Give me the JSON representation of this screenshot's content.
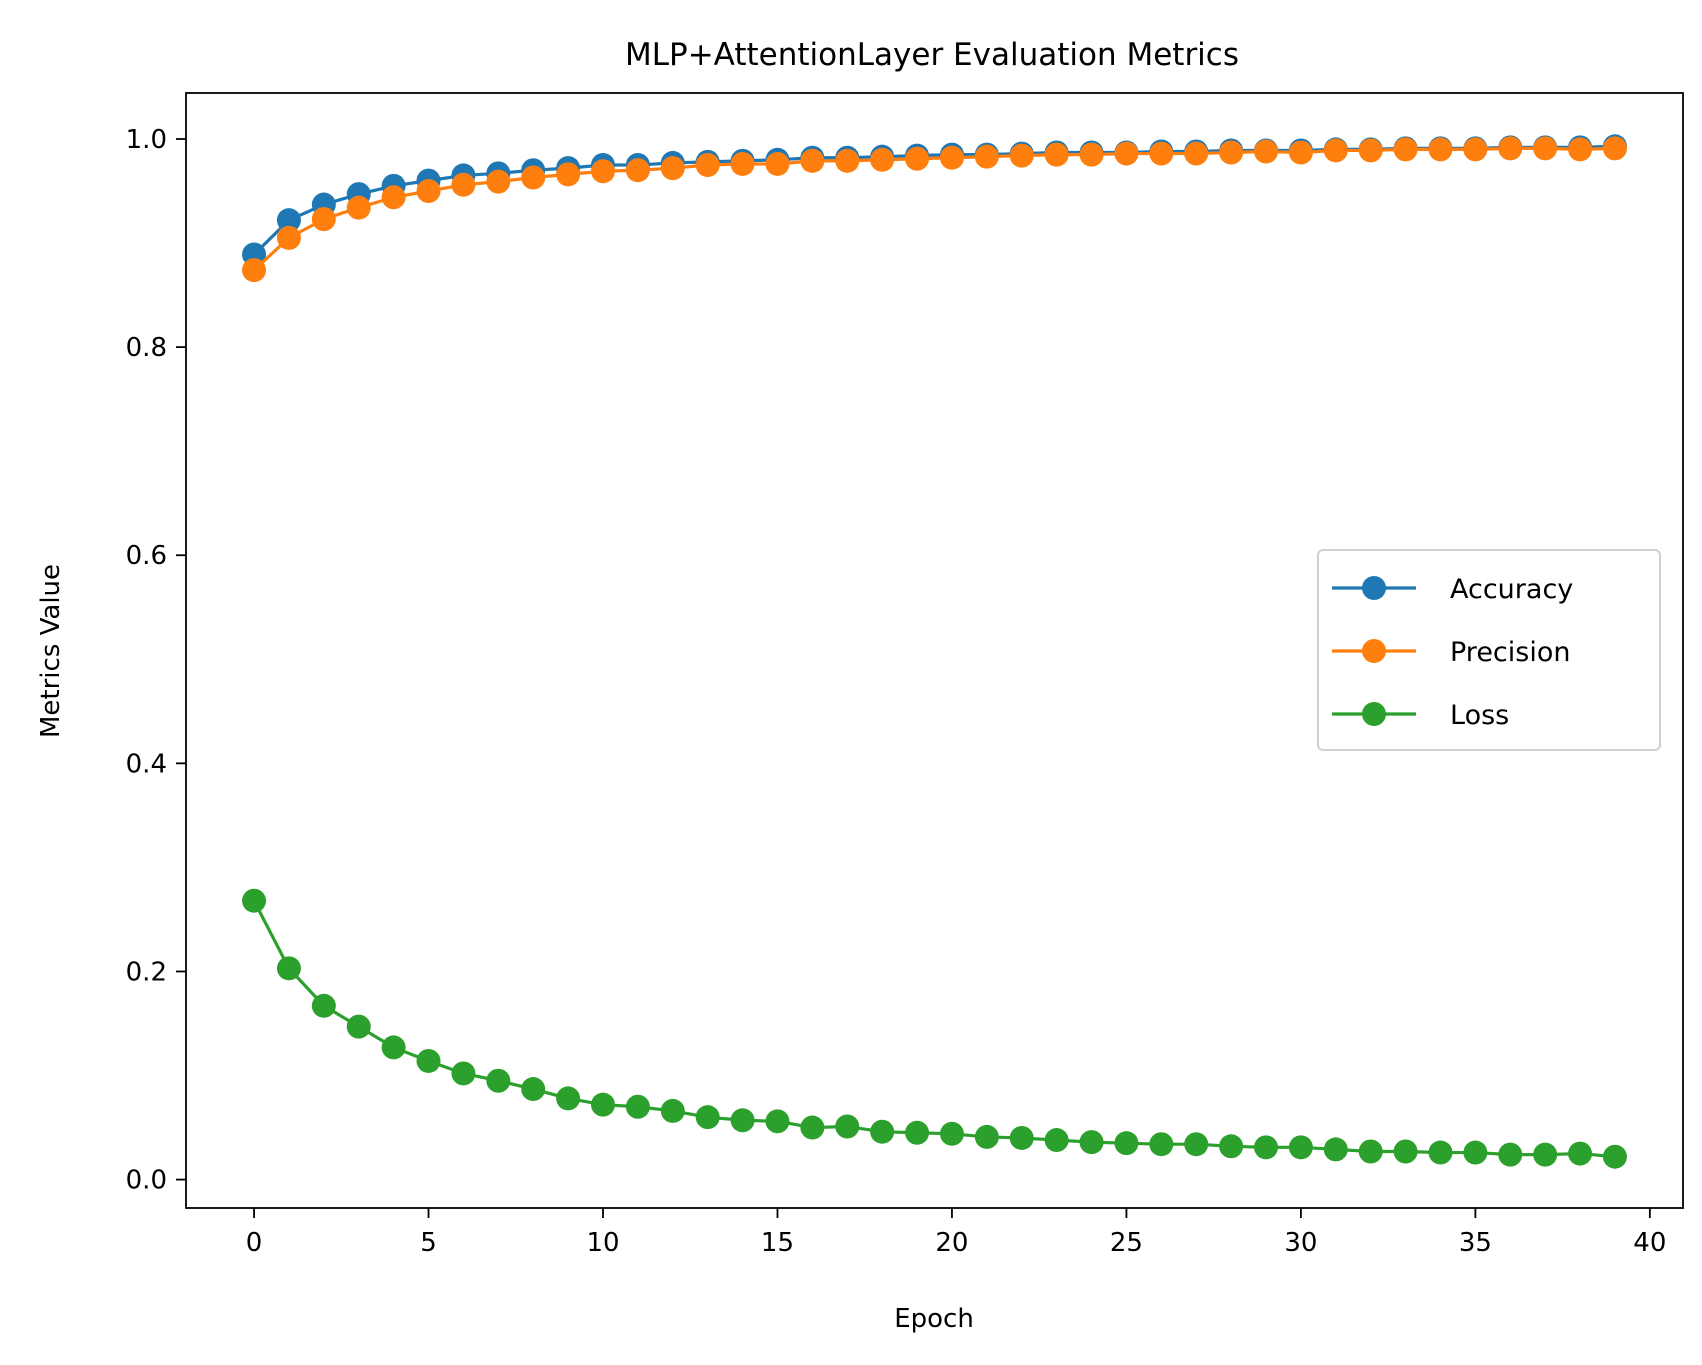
{
  "chart_data": {
    "type": "line",
    "title": "MLP+AttentionLayer Evaluation Metrics",
    "xlabel": "Epoch",
    "ylabel": "Metrics Value",
    "xlim": [
      -1.95,
      40.95
    ],
    "ylim": [
      -0.0273,
      1.0442
    ],
    "xticks": [
      0,
      5,
      10,
      15,
      20,
      25,
      30,
      35,
      40
    ],
    "yticks": [
      0.0,
      0.2,
      0.4,
      0.6,
      0.8,
      1.0
    ],
    "xtick_labels": [
      "0",
      "5",
      "10",
      "15",
      "20",
      "25",
      "30",
      "35",
      "40"
    ],
    "ytick_labels": [
      "0.0",
      "0.2",
      "0.4",
      "0.6",
      "0.8",
      "1.0"
    ],
    "grid": false,
    "legend_position": "center-right",
    "x": [
      0,
      1,
      2,
      3,
      4,
      5,
      6,
      7,
      8,
      9,
      10,
      11,
      12,
      13,
      14,
      15,
      16,
      17,
      18,
      19,
      20,
      21,
      22,
      23,
      24,
      25,
      26,
      27,
      28,
      29,
      30,
      31,
      32,
      33,
      34,
      35,
      36,
      37,
      38,
      39
    ],
    "series": [
      {
        "name": "Accuracy",
        "color": "#1f77b4",
        "values": [
          0.889,
          0.922,
          0.937,
          0.947,
          0.955,
          0.96,
          0.965,
          0.967,
          0.97,
          0.972,
          0.975,
          0.975,
          0.977,
          0.978,
          0.979,
          0.98,
          0.982,
          0.982,
          0.983,
          0.984,
          0.985,
          0.985,
          0.986,
          0.987,
          0.987,
          0.987,
          0.988,
          0.988,
          0.989,
          0.989,
          0.989,
          0.99,
          0.99,
          0.991,
          0.991,
          0.991,
          0.992,
          0.992,
          0.992,
          0.993
        ]
      },
      {
        "name": "Precision",
        "color": "#ff7f0e",
        "values": [
          0.874,
          0.905,
          0.923,
          0.934,
          0.944,
          0.95,
          0.956,
          0.959,
          0.963,
          0.966,
          0.969,
          0.97,
          0.972,
          0.975,
          0.976,
          0.976,
          0.979,
          0.979,
          0.98,
          0.981,
          0.982,
          0.983,
          0.984,
          0.985,
          0.985,
          0.986,
          0.986,
          0.986,
          0.987,
          0.988,
          0.987,
          0.989,
          0.989,
          0.99,
          0.99,
          0.99,
          0.991,
          0.991,
          0.99,
          0.991
        ]
      },
      {
        "name": "Loss",
        "color": "#2ca02c",
        "values": [
          0.268,
          0.203,
          0.167,
          0.147,
          0.127,
          0.114,
          0.102,
          0.095,
          0.087,
          0.078,
          0.072,
          0.07,
          0.066,
          0.06,
          0.057,
          0.056,
          0.05,
          0.051,
          0.046,
          0.045,
          0.044,
          0.041,
          0.04,
          0.038,
          0.036,
          0.035,
          0.034,
          0.034,
          0.032,
          0.031,
          0.031,
          0.029,
          0.027,
          0.027,
          0.026,
          0.026,
          0.024,
          0.024,
          0.025,
          0.022
        ]
      }
    ]
  }
}
